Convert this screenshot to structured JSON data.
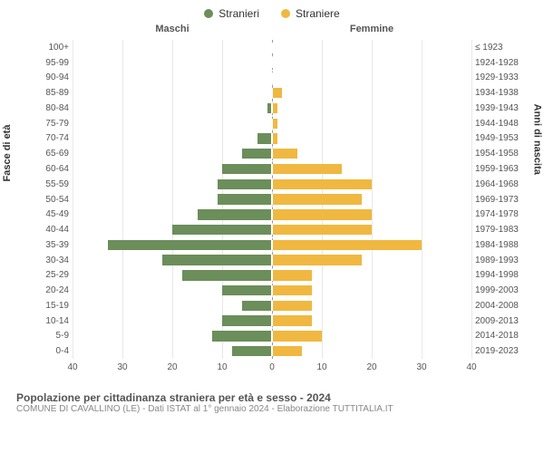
{
  "legend": {
    "male": {
      "label": "Stranieri",
      "color": "#6b8e5a"
    },
    "female": {
      "label": "Straniere",
      "color": "#f0b840"
    }
  },
  "columns": {
    "left": "Maschi",
    "right": "Femmine"
  },
  "axis_titles": {
    "left": "Fasce di età",
    "right": "Anni di nascita"
  },
  "footer": {
    "title": "Popolazione per cittadinanza straniera per età e sesso - 2024",
    "subtitle": "COMUNE DI CAVALLINO (LE) - Dati ISTAT al 1° gennaio 2024 - Elaborazione TUTTITALIA.IT"
  },
  "chart": {
    "type": "population-pyramid",
    "xmax": 40,
    "xticks": [
      40,
      30,
      20,
      10,
      0,
      10,
      20,
      30,
      40
    ],
    "bar_border": "#ffffff",
    "grid_color": "#e8e8e8",
    "centerline_color": "#999999",
    "rows": [
      {
        "age": "100+",
        "birth": "≤ 1923",
        "m": 0,
        "f": 0
      },
      {
        "age": "95-99",
        "birth": "1924-1928",
        "m": 0,
        "f": 0
      },
      {
        "age": "90-94",
        "birth": "1929-1933",
        "m": 0,
        "f": 0
      },
      {
        "age": "85-89",
        "birth": "1934-1938",
        "m": 0,
        "f": 2
      },
      {
        "age": "80-84",
        "birth": "1939-1943",
        "m": 1,
        "f": 1
      },
      {
        "age": "75-79",
        "birth": "1944-1948",
        "m": 0,
        "f": 1
      },
      {
        "age": "70-74",
        "birth": "1949-1953",
        "m": 3,
        "f": 1
      },
      {
        "age": "65-69",
        "birth": "1954-1958",
        "m": 6,
        "f": 5
      },
      {
        "age": "60-64",
        "birth": "1959-1963",
        "m": 10,
        "f": 14
      },
      {
        "age": "55-59",
        "birth": "1964-1968",
        "m": 11,
        "f": 20
      },
      {
        "age": "50-54",
        "birth": "1969-1973",
        "m": 11,
        "f": 18
      },
      {
        "age": "45-49",
        "birth": "1974-1978",
        "m": 15,
        "f": 20
      },
      {
        "age": "40-44",
        "birth": "1979-1983",
        "m": 20,
        "f": 20
      },
      {
        "age": "35-39",
        "birth": "1984-1988",
        "m": 33,
        "f": 30
      },
      {
        "age": "30-34",
        "birth": "1989-1993",
        "m": 22,
        "f": 18
      },
      {
        "age": "25-29",
        "birth": "1994-1998",
        "m": 18,
        "f": 8
      },
      {
        "age": "20-24",
        "birth": "1999-2003",
        "m": 10,
        "f": 8
      },
      {
        "age": "15-19",
        "birth": "2004-2008",
        "m": 6,
        "f": 8
      },
      {
        "age": "10-14",
        "birth": "2009-2013",
        "m": 10,
        "f": 8
      },
      {
        "age": "5-9",
        "birth": "2014-2018",
        "m": 12,
        "f": 10
      },
      {
        "age": "0-4",
        "birth": "2019-2023",
        "m": 8,
        "f": 6
      }
    ]
  }
}
